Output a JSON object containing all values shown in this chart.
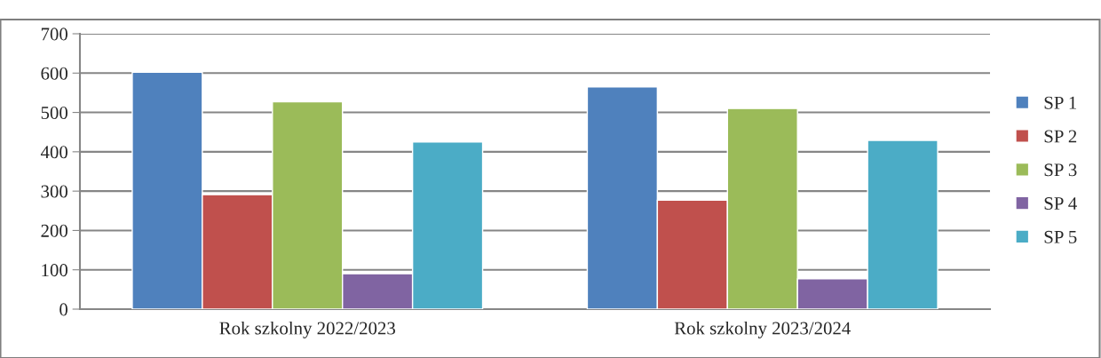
{
  "chart_data": {
    "type": "bar",
    "categories": [
      "Rok szkolny 2022/2023",
      "Rok szkolny 2023/2024"
    ],
    "series": [
      {
        "name": "SP 1",
        "color": "#4f81bd",
        "values": [
          602,
          565
        ]
      },
      {
        "name": "SP 2",
        "color": "#c0504d",
        "values": [
          291,
          277
        ]
      },
      {
        "name": "SP 3",
        "color": "#9bbb59",
        "values": [
          527,
          510
        ]
      },
      {
        "name": "SP 4",
        "color": "#8064a2",
        "values": [
          90,
          77
        ]
      },
      {
        "name": "SP 5",
        "color": "#4bacc6",
        "values": [
          425,
          429
        ]
      }
    ],
    "ylim": [
      0,
      700
    ],
    "yticks": [
      0,
      100,
      200,
      300,
      400,
      500,
      600,
      700
    ],
    "grid": "y",
    "legend": "right"
  }
}
